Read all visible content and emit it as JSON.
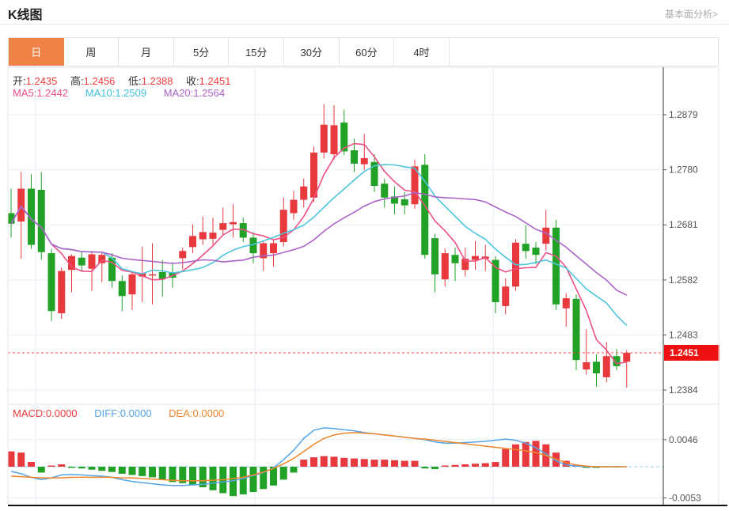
{
  "header": {
    "title": "K线图",
    "analysis_link": "基本面分析>"
  },
  "tabs": {
    "active_index": 0,
    "items": [
      {
        "label": "日"
      },
      {
        "label": "周"
      },
      {
        "label": "月"
      },
      {
        "label": "5分"
      },
      {
        "label": "15分"
      },
      {
        "label": "30分"
      },
      {
        "label": "60分"
      },
      {
        "label": "4时"
      }
    ]
  },
  "main_legend": {
    "open_label": "开:",
    "open_value": "1.2435",
    "high_label": "高:",
    "high_value": "1.2456",
    "low_label": "低:",
    "low_value": "1.2388",
    "close_label": "收:",
    "close_value": "1.2451",
    "ma5_label": "MA5: ",
    "ma5_value": "1.2442",
    "ma10_label": "MA10: ",
    "ma10_value": "1.2509",
    "ma20_label": "MA20: ",
    "ma20_value": "1.2564"
  },
  "macd_legend": {
    "macd_label": "MACD:",
    "macd_value": "0.0000",
    "diff_label": "DIFF: ",
    "diff_value": "0.0000",
    "dea_label": "DEA: ",
    "dea_value": "0.0000"
  },
  "price_badge": "1.2451",
  "colors": {
    "up": "#e7393e",
    "down": "#21a126",
    "ma5": "#ee4f86",
    "ma10": "#4cc5dd",
    "ma20": "#ac63c8",
    "diff": "#54a5e8",
    "dea": "#f0862b",
    "active_tab": "#ee8247",
    "current_price_line": "#ff4545",
    "badge_bg": "#ee1111",
    "grid": "#e9eff6",
    "axis_text": "#555",
    "zero_dash": "#8fd4f2"
  },
  "chart_data": [
    {
      "type": "candlestick",
      "title": "K线图",
      "period": "日",
      "y_axis": {
        "ticks": [
          "1.2879",
          "1.2780",
          "1.2681",
          "1.2582",
          "1.2483",
          "1.2384"
        ],
        "range": [
          1.236,
          1.2965
        ]
      },
      "current_price": 1.2451,
      "ohlc": {
        "open": 1.2435,
        "high": 1.2456,
        "low": 1.2388,
        "close": 1.2451
      },
      "ma": {
        "ma5": 1.2442,
        "ma10": 1.2509,
        "ma20": 1.2564
      },
      "candles": [
        [
          1.2702,
          1.2746,
          1.2658,
          1.2683
        ],
        [
          1.2687,
          1.2776,
          1.262,
          1.2746
        ],
        [
          1.2746,
          1.2772,
          1.2638,
          1.2645
        ],
        [
          1.2744,
          1.2776,
          1.2618,
          1.2632
        ],
        [
          1.263,
          1.2638,
          1.2508,
          1.2526
        ],
        [
          1.2522,
          1.2604,
          1.2512,
          1.2598
        ],
        [
          1.26,
          1.2628,
          1.256,
          1.2625
        ],
        [
          1.2622,
          1.2632,
          1.2596,
          1.2608
        ],
        [
          1.2602,
          1.2634,
          1.2562,
          1.2628
        ],
        [
          1.2612,
          1.2632,
          1.2578,
          1.2627
        ],
        [
          1.2622,
          1.263,
          1.2568,
          1.258
        ],
        [
          1.258,
          1.259,
          1.2526,
          1.2553
        ],
        [
          1.2556,
          1.2598,
          1.2528,
          1.2592
        ],
        [
          1.2588,
          1.2642,
          1.2542,
          1.2594
        ],
        [
          1.259,
          1.2648,
          1.2538,
          1.2592
        ],
        [
          1.2596,
          1.2618,
          1.2552,
          1.2584
        ],
        [
          1.2596,
          1.2614,
          1.2568,
          1.2586
        ],
        [
          1.2621,
          1.264,
          1.2601,
          1.2634
        ],
        [
          1.2641,
          1.2682,
          1.263,
          1.2661
        ],
        [
          1.2655,
          1.2696,
          1.2645,
          1.2668
        ],
        [
          1.2656,
          1.2694,
          1.2646,
          1.2667
        ],
        [
          1.2672,
          1.2712,
          1.2664,
          1.2684
        ],
        [
          1.2682,
          1.2718,
          1.2658,
          1.2686
        ],
        [
          1.2684,
          1.2694,
          1.265,
          1.2658
        ],
        [
          1.2658,
          1.2668,
          1.2612,
          1.263
        ],
        [
          1.2621,
          1.2652,
          1.2598,
          1.2648
        ],
        [
          1.263,
          1.2656,
          1.2606,
          1.2648
        ],
        [
          1.265,
          1.273,
          1.2642,
          1.2708
        ],
        [
          1.2702,
          1.2742,
          1.269,
          1.2726
        ],
        [
          1.2726,
          1.2764,
          1.2712,
          1.275
        ],
        [
          1.273,
          1.2822,
          1.2722,
          1.2811
        ],
        [
          1.2811,
          1.2898,
          1.28,
          1.2861
        ],
        [
          1.2808,
          1.2896,
          1.2798,
          1.286
        ],
        [
          1.2865,
          1.2888,
          1.2806,
          1.2813
        ],
        [
          1.2815,
          1.2836,
          1.2776,
          1.2791
        ],
        [
          1.279,
          1.2844,
          1.278,
          1.2801
        ],
        [
          1.2794,
          1.2808,
          1.274,
          1.2751
        ],
        [
          1.2755,
          1.2764,
          1.2712,
          1.273
        ],
        [
          1.2732,
          1.275,
          1.27,
          1.2719
        ],
        [
          1.2727,
          1.274,
          1.27,
          1.2716
        ],
        [
          1.2718,
          1.2798,
          1.271,
          1.2786
        ],
        [
          1.2789,
          1.2808,
          1.262,
          1.2627
        ],
        [
          1.2657,
          1.2665,
          1.256,
          1.2592
        ],
        [
          1.2583,
          1.2638,
          1.257,
          1.263
        ],
        [
          1.2627,
          1.264,
          1.258,
          1.2612
        ],
        [
          1.26,
          1.264,
          1.2588,
          1.262
        ],
        [
          1.2618,
          1.2652,
          1.26,
          1.2625
        ],
        [
          1.262,
          1.2645,
          1.2598,
          1.2624
        ],
        [
          1.2618,
          1.2625,
          1.2522,
          1.2542
        ],
        [
          1.2535,
          1.2585,
          1.252,
          1.257
        ],
        [
          1.257,
          1.2655,
          1.2562,
          1.2649
        ],
        [
          1.2647,
          1.268,
          1.262,
          1.2634
        ],
        [
          1.264,
          1.265,
          1.261,
          1.2627
        ],
        [
          1.2647,
          1.2708,
          1.2635,
          1.2676
        ],
        [
          1.2676,
          1.269,
          1.2528,
          1.2538
        ],
        [
          1.2531,
          1.2558,
          1.2498,
          1.2549
        ],
        [
          1.2548,
          1.2556,
          1.242,
          1.2438
        ],
        [
          1.2421,
          1.2493,
          1.2412,
          1.2434
        ],
        [
          1.2435,
          1.2448,
          1.239,
          1.2414
        ],
        [
          1.2407,
          1.247,
          1.2398,
          1.2445
        ],
        [
          1.2445,
          1.2458,
          1.242,
          1.2427
        ],
        [
          1.2435,
          1.2456,
          1.2388,
          1.2451
        ]
      ]
    },
    {
      "type": "bar",
      "title": "MACD",
      "y_axis": {
        "ticks": [
          "0.0046",
          "-0.0053"
        ]
      },
      "macd": 0.0,
      "diff": 0.0,
      "dea": 0.0,
      "histogram": [
        0.0026,
        0.0024,
        0.0008,
        -0.001,
        0.0002,
        0.0004,
        -0.0002,
        -0.0003,
        -0.0005,
        -0.0007,
        -0.0009,
        -0.0012,
        -0.0014,
        -0.0016,
        -0.0018,
        -0.0022,
        -0.0026,
        -0.0028,
        -0.0031,
        -0.0035,
        -0.004,
        -0.0045,
        -0.005,
        -0.0047,
        -0.0043,
        -0.0038,
        -0.0032,
        -0.0022,
        -0.001,
        0.0012,
        0.0016,
        0.0018,
        0.0017,
        0.0015,
        0.0014,
        0.0013,
        0.0012,
        0.0012,
        0.0011,
        0.001,
        0.001,
        -0.0003,
        -0.0004,
        0.0002,
        0.0003,
        0.0004,
        0.0005,
        0.0006,
        0.0008,
        0.003,
        0.0038,
        0.0042,
        0.0044,
        0.0038,
        0.0024,
        0.001,
        0.0003,
        -0.0002,
        -0.0002,
        -0.0001,
        -0.0001,
        0.0
      ],
      "diff_line": [
        -0.0008,
        -0.0012,
        -0.0018,
        -0.0022,
        -0.0019,
        -0.0014,
        -0.0013,
        -0.0014,
        -0.0015,
        -0.0016,
        -0.0018,
        -0.0022,
        -0.0025,
        -0.0027,
        -0.0029,
        -0.0031,
        -0.0032,
        -0.0032,
        -0.0031,
        -0.003,
        -0.0028,
        -0.0026,
        -0.0024,
        -0.002,
        -0.0015,
        -0.001,
        -0.0002,
        0.0012,
        0.0028,
        0.0048,
        0.0062,
        0.0066,
        0.0065,
        0.0063,
        0.0061,
        0.0058,
        0.0056,
        0.0054,
        0.0052,
        0.005,
        0.0048,
        0.0046,
        0.0042,
        0.004,
        0.004,
        0.0041,
        0.0042,
        0.0043,
        0.0045,
        0.0047,
        0.0045,
        0.004,
        0.0032,
        0.0022,
        0.001,
        0.0003,
        0.0001,
        0.0,
        0.0,
        0.0,
        0.0,
        0.0
      ],
      "dea_line": [
        -0.0016,
        -0.0017,
        -0.0018,
        -0.0019,
        -0.0019,
        -0.0019,
        -0.0018,
        -0.0018,
        -0.0018,
        -0.0018,
        -0.0018,
        -0.0019,
        -0.0019,
        -0.002,
        -0.0021,
        -0.0022,
        -0.0023,
        -0.0024,
        -0.0024,
        -0.0024,
        -0.0023,
        -0.0022,
        -0.002,
        -0.0018,
        -0.0014,
        -0.0009,
        -0.0003,
        0.0005,
        0.0014,
        0.0026,
        0.0038,
        0.0048,
        0.0054,
        0.0057,
        0.0058,
        0.0057,
        0.0056,
        0.0054,
        0.0052,
        0.005,
        0.0048,
        0.0047,
        0.0045,
        0.0043,
        0.0041,
        0.0039,
        0.0037,
        0.0035,
        0.0033,
        0.0031,
        0.0029,
        0.0027,
        0.0024,
        0.0019,
        0.0013,
        0.0007,
        0.0003,
        0.0001,
        0.0,
        0.0,
        0.0,
        0.0
      ]
    }
  ]
}
